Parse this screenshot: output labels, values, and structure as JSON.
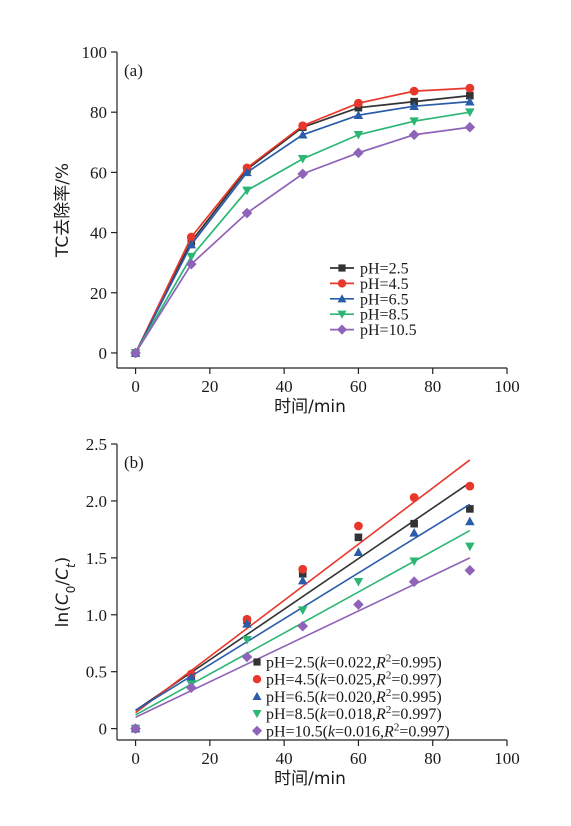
{
  "chart_data": [
    {
      "type": "line",
      "panel_label": "(a)",
      "ylabel": "TC去除率/%",
      "xlabel": "时间/min",
      "xlim": [
        -5,
        100
      ],
      "ylim": [
        -5,
        100
      ],
      "xticks": [
        "0",
        "20",
        "40",
        "60",
        "80",
        "100"
      ],
      "yticks": [
        "0",
        "20",
        "40",
        "60",
        "80",
        "100"
      ],
      "legend_position": "center-right",
      "x": [
        0,
        15,
        30,
        45,
        60,
        75,
        90
      ],
      "series": [
        {
          "name": "pH=2.5",
          "color": "#333333",
          "marker": "square",
          "values": [
            0,
            37,
            61,
            75,
            81.5,
            83.5,
            85.5
          ]
        },
        {
          "name": "pH=4.5",
          "color": "#e8382c",
          "marker": "circle",
          "values": [
            0,
            38.5,
            61.5,
            75.5,
            83,
            87,
            88
          ]
        },
        {
          "name": "pH=6.5",
          "color": "#2a5caa",
          "marker": "triangle-up",
          "values": [
            0,
            36,
            60,
            72.5,
            79,
            82,
            83.5
          ]
        },
        {
          "name": "pH=8.5",
          "color": "#2bb673",
          "marker": "triangle-down",
          "values": [
            0,
            32,
            54,
            64.5,
            72.5,
            77,
            80
          ]
        },
        {
          "name": "pH=10.5",
          "color": "#8e63b8",
          "marker": "diamond",
          "values": [
            0,
            29.5,
            46.5,
            59.5,
            66.5,
            72.5,
            75
          ]
        }
      ]
    },
    {
      "type": "scatter",
      "panel_label": "(b)",
      "ylabel_parts": [
        "ln(",
        "C",
        "0",
        "/",
        "C",
        "t",
        ")"
      ],
      "xlabel": "时间/min",
      "xlim": [
        -5,
        100
      ],
      "ylim": [
        -0.1,
        2.5
      ],
      "xticks": [
        "0",
        "20",
        "40",
        "60",
        "80",
        "100"
      ],
      "yticks": [
        "0",
        "0.5",
        "1.0",
        "1.5",
        "2.0",
        "2.5"
      ],
      "legend_position": "bottom-right",
      "x": [
        0,
        15,
        30,
        45,
        60,
        75,
        90
      ],
      "series": [
        {
          "legend_parts": [
            "pH=2.5(",
            "k",
            "=0.022,",
            "R",
            "2",
            "=0.995)"
          ],
          "color": "#333333",
          "marker": "square",
          "values": [
            0,
            0.46,
            0.95,
            1.36,
            1.68,
            1.8,
            1.93
          ],
          "fit_start": 0.16,
          "fit_end": 2.16
        },
        {
          "legend_parts": [
            "pH=4.5(",
            "k",
            "=0.025,",
            "R",
            "2",
            "=0.997)"
          ],
          "color": "#e8382c",
          "marker": "circle",
          "values": [
            0,
            0.48,
            0.96,
            1.4,
            1.78,
            2.03,
            2.13
          ],
          "fit_start": 0.14,
          "fit_end": 2.36
        },
        {
          "legend_parts": [
            "pH=6.5(",
            "k",
            "=0.020,",
            "R",
            "2",
            "=0.995)"
          ],
          "color": "#2a5caa",
          "marker": "triangle-up",
          "values": [
            0,
            0.45,
            0.92,
            1.3,
            1.55,
            1.72,
            1.82
          ],
          "fit_start": 0.16,
          "fit_end": 1.97
        },
        {
          "legend_parts": [
            "pH=8.5(",
            "k",
            "=0.018,",
            "R",
            "2",
            "=0.997)"
          ],
          "color": "#2bb673",
          "marker": "triangle-down",
          "values": [
            0,
            0.39,
            0.78,
            1.04,
            1.29,
            1.47,
            1.6
          ],
          "fit_start": 0.12,
          "fit_end": 1.74
        },
        {
          "legend_parts": [
            "pH=10.5(",
            "k",
            "=0.016,",
            "R",
            "2",
            "=0.997)"
          ],
          "color": "#8e63b8",
          "marker": "diamond",
          "values": [
            0,
            0.36,
            0.63,
            0.9,
            1.09,
            1.29,
            1.39
          ],
          "fit_start": 0.1,
          "fit_end": 1.5
        }
      ]
    }
  ]
}
